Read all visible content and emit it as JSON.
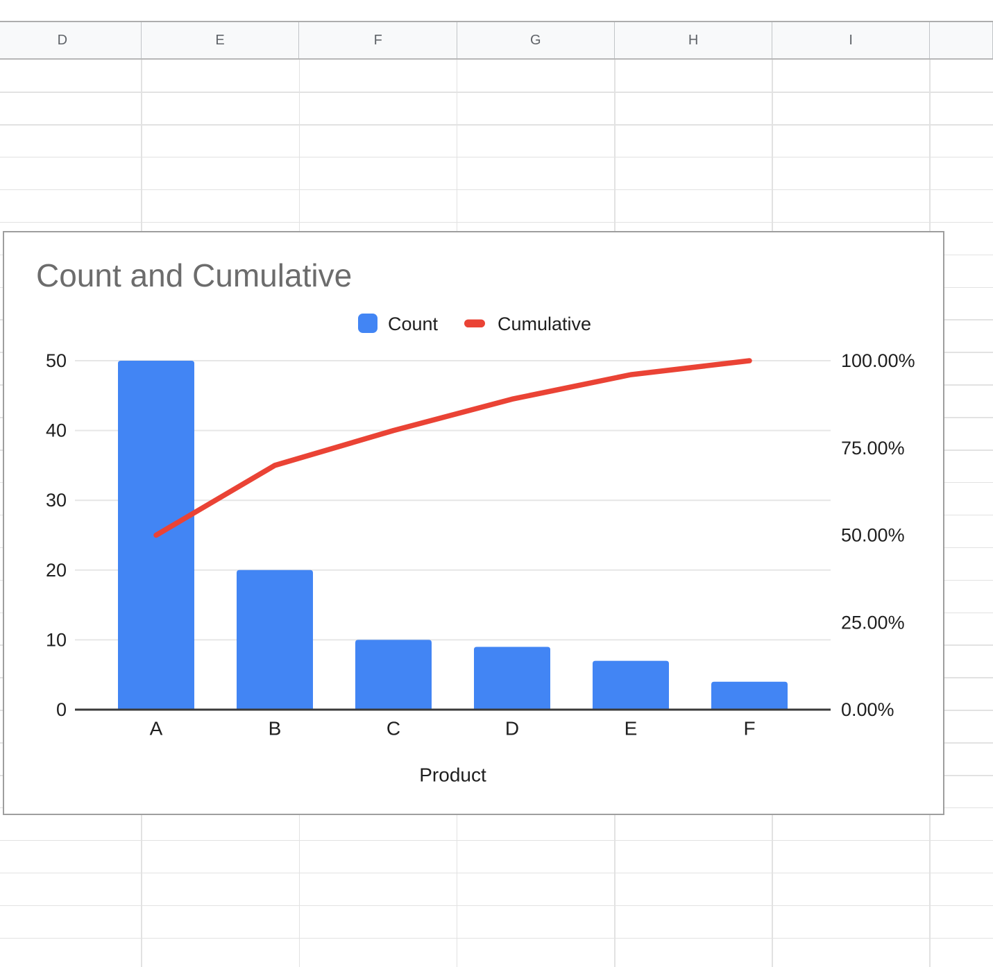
{
  "app": "spreadsheet",
  "spreadsheet": {
    "column_headers": [
      "D",
      "E",
      "F",
      "G",
      "H",
      "I",
      ""
    ]
  },
  "chart": {
    "title": "Count and Cumulative",
    "title_color": "#6c6c6c",
    "legend": [
      {
        "label": "Count",
        "swatch": "square",
        "color": "#4285F4"
      },
      {
        "label": "Cumulative",
        "swatch": "line",
        "color": "#EA4335"
      }
    ],
    "text_color": "#1f1f1f",
    "gridline_color": "#e6e6e6",
    "axisline_color": "#3a3a3a"
  },
  "chart_data": {
    "type": "bar",
    "subtype": "pareto-combo",
    "title": "Count and Cumulative",
    "xlabel": "Product",
    "categories": [
      "A",
      "B",
      "C",
      "D",
      "E",
      "F"
    ],
    "series": [
      {
        "name": "Count",
        "type": "bar",
        "axis": "left",
        "color": "#4285F4",
        "values": [
          50,
          20,
          10,
          9,
          7,
          4
        ]
      },
      {
        "name": "Cumulative",
        "type": "line",
        "axis": "right",
        "color": "#EA4335",
        "values_percent": [
          50,
          70,
          80,
          89,
          96,
          100
        ]
      }
    ],
    "left_axis": {
      "range": [
        0,
        50
      ],
      "ticks": [
        {
          "label": "0",
          "value": 0
        },
        {
          "label": "10",
          "value": 10
        },
        {
          "label": "20",
          "value": 20
        },
        {
          "label": "30",
          "value": 30
        },
        {
          "label": "40",
          "value": 40
        },
        {
          "label": "50",
          "value": 50
        }
      ]
    },
    "right_axis": {
      "range": [
        0,
        100
      ],
      "ticks": [
        {
          "label": "0.00%",
          "value": 0
        },
        {
          "label": "25.00%",
          "value": 25
        },
        {
          "label": "50.00%",
          "value": 50
        },
        {
          "label": "75.00%",
          "value": 75
        },
        {
          "label": "100.00%",
          "value": 100
        }
      ]
    },
    "legend_position": "top",
    "grid": true
  }
}
